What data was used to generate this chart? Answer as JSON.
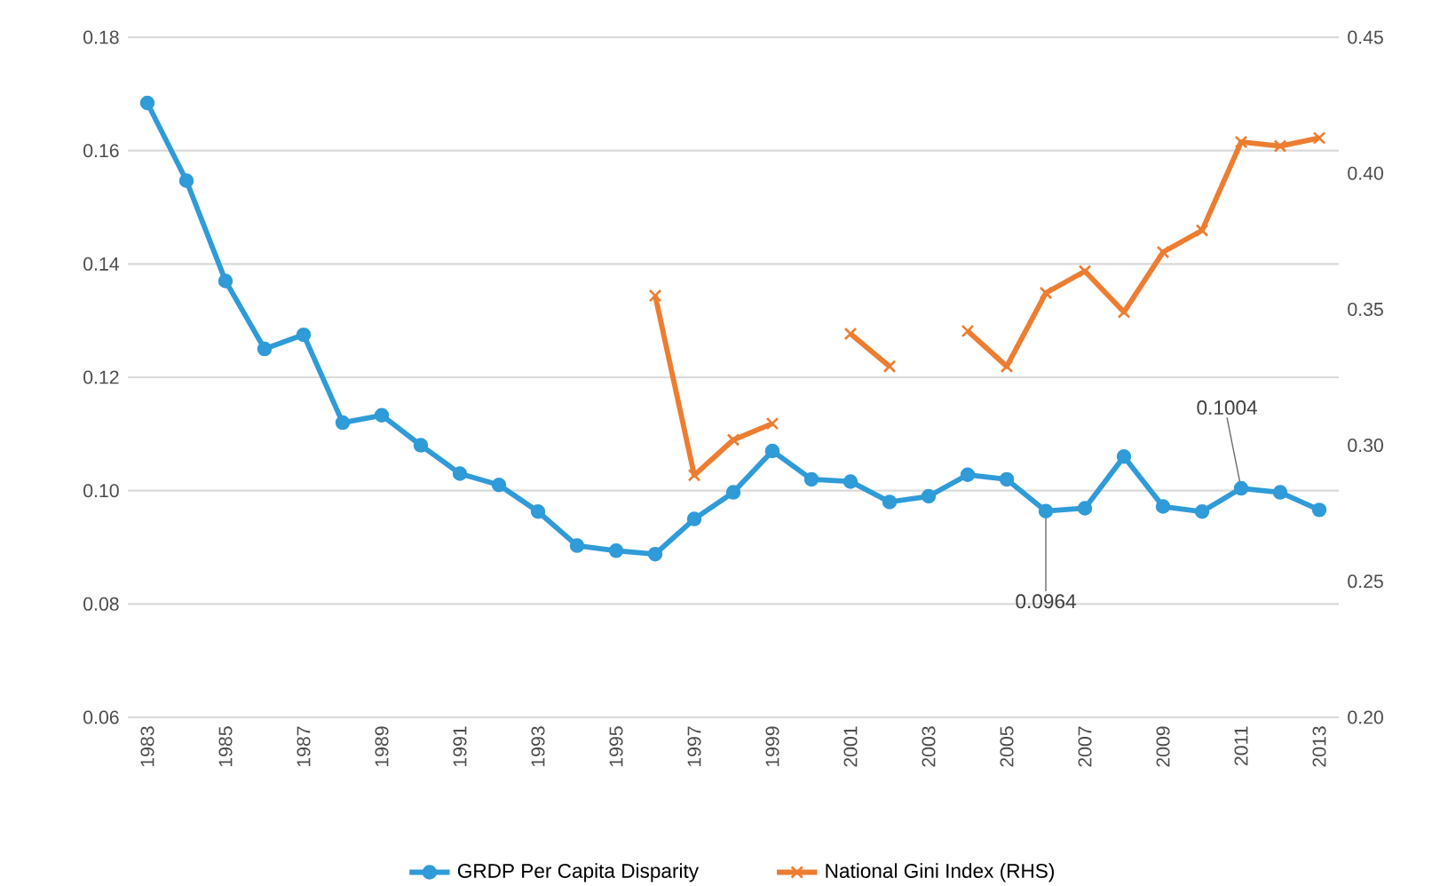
{
  "chart_data": {
    "type": "line",
    "categories": [
      "1983",
      null,
      "1985",
      null,
      "1987",
      null,
      "1989",
      null,
      "1991",
      null,
      "1993",
      null,
      "1995",
      null,
      "1997",
      null,
      "1999",
      null,
      "2001",
      null,
      "2003",
      null,
      "2005",
      null,
      "2007",
      null,
      "2009",
      null,
      "2011",
      null,
      "2013"
    ],
    "series": [
      {
        "name": "GRDP Per Capita Disparity",
        "color": "#2f9bd8",
        "marker": "circle",
        "values": [
          0.1684,
          0.1547,
          0.137,
          0.125,
          0.1275,
          0.112,
          0.1133,
          0.108,
          0.103,
          0.101,
          0.0963,
          0.0903,
          0.0894,
          0.0888,
          0.095,
          0.0997,
          0.107,
          0.102,
          0.1016,
          0.098,
          0.099,
          0.1028,
          0.102,
          0.0964,
          0.0969,
          0.106,
          0.0972,
          0.0963,
          0.1004,
          0.0997,
          0.0966
        ],
        "value_labels": [
          null,
          null,
          null,
          null,
          null,
          null,
          null,
          null,
          null,
          null,
          null,
          null,
          null,
          null,
          null,
          null,
          null,
          null,
          null,
          null,
          null,
          null,
          null,
          "0.0964",
          null,
          null,
          null,
          null,
          "0.1004",
          null,
          null
        ]
      },
      {
        "name": "National Gini Index (RHS)",
        "color": "#ed7d31",
        "marker": "cross",
        "axis": "y2",
        "values": [
          null,
          null,
          null,
          null,
          null,
          null,
          null,
          null,
          null,
          null,
          null,
          null,
          null,
          0.355,
          0.289,
          0.302,
          0.308,
          null,
          0.341,
          0.329,
          null,
          0.342,
          0.329,
          0.356,
          0.364,
          0.349,
          0.371,
          0.379,
          0.4115,
          0.41,
          0.413
        ]
      }
    ],
    "ylim": [
      0.06,
      0.18
    ],
    "yticks": [
      0.06,
      0.08,
      {
        "value": 0.1,
        "label": "0.10"
      },
      0.12,
      0.14,
      0.16,
      0.18
    ],
    "y2lim": [
      0.2,
      0.45
    ],
    "y2ticks": [
      {
        "value": 0.2,
        "label": "0.20"
      },
      0.25,
      {
        "value": 0.3,
        "label": "0.30"
      },
      0.35,
      {
        "value": 0.4,
        "label": "0.40"
      },
      0.45
    ],
    "grid": "y",
    "legend": "bottom",
    "line_style": "solid"
  }
}
